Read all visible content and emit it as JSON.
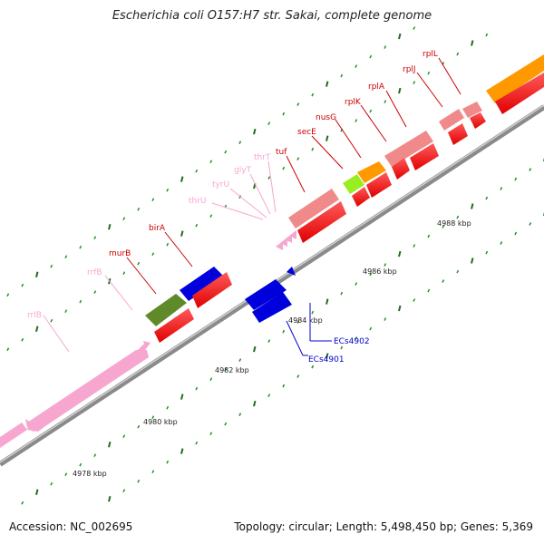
{
  "title": "Escherichia coli O157:H7 str. Sakai, complete genome",
  "footer": {
    "accession": "Accession: NC_002695",
    "summary": "Topology: circular; Length: 5,498,450 bp; Genes: 5,369"
  },
  "colors": {
    "backbone": "#8a8a8a",
    "tick_major": "#1f6e1f",
    "tick_minor": "#1f8f1f",
    "rRNA": "#f7a6cf",
    "tRNA": "#f7a6cf",
    "cds_red": "#ff0000",
    "cds_light": "#f08a8a",
    "cds_blue": "#0000dd",
    "cds_olive": "#5f8a2a",
    "cds_lime": "#99ee22",
    "cds_orange": "#ff9900"
  },
  "scale": {
    "labels": [
      "4978 kbp",
      "4980 kbp",
      "4982 kbp",
      "4984 kbp",
      "4986 kbp",
      "4988 kbp"
    ]
  },
  "genes": [
    {
      "name": "rrlB",
      "color": "#f7a6cf"
    },
    {
      "name": "rrfB",
      "color": "#f7a6cf"
    },
    {
      "name": "murB",
      "color": "#cc0000"
    },
    {
      "name": "birA",
      "color": "#cc0000"
    },
    {
      "name": "thrU",
      "color": "#f7a6cf"
    },
    {
      "name": "tyrU",
      "color": "#f7a6cf"
    },
    {
      "name": "glyT",
      "color": "#f7a6cf"
    },
    {
      "name": "thrT",
      "color": "#f7a6cf"
    },
    {
      "name": "tuf",
      "color": "#cc0000"
    },
    {
      "name": "secE",
      "color": "#cc0000"
    },
    {
      "name": "nusG",
      "color": "#cc0000"
    },
    {
      "name": "rplK",
      "color": "#cc0000"
    },
    {
      "name": "rplA",
      "color": "#cc0000"
    },
    {
      "name": "rplJ",
      "color": "#cc0000"
    },
    {
      "name": "rplL",
      "color": "#cc0000"
    },
    {
      "name": "ECs4902",
      "color": "#0000cc"
    },
    {
      "name": "ECs4901",
      "color": "#0000cc"
    }
  ]
}
